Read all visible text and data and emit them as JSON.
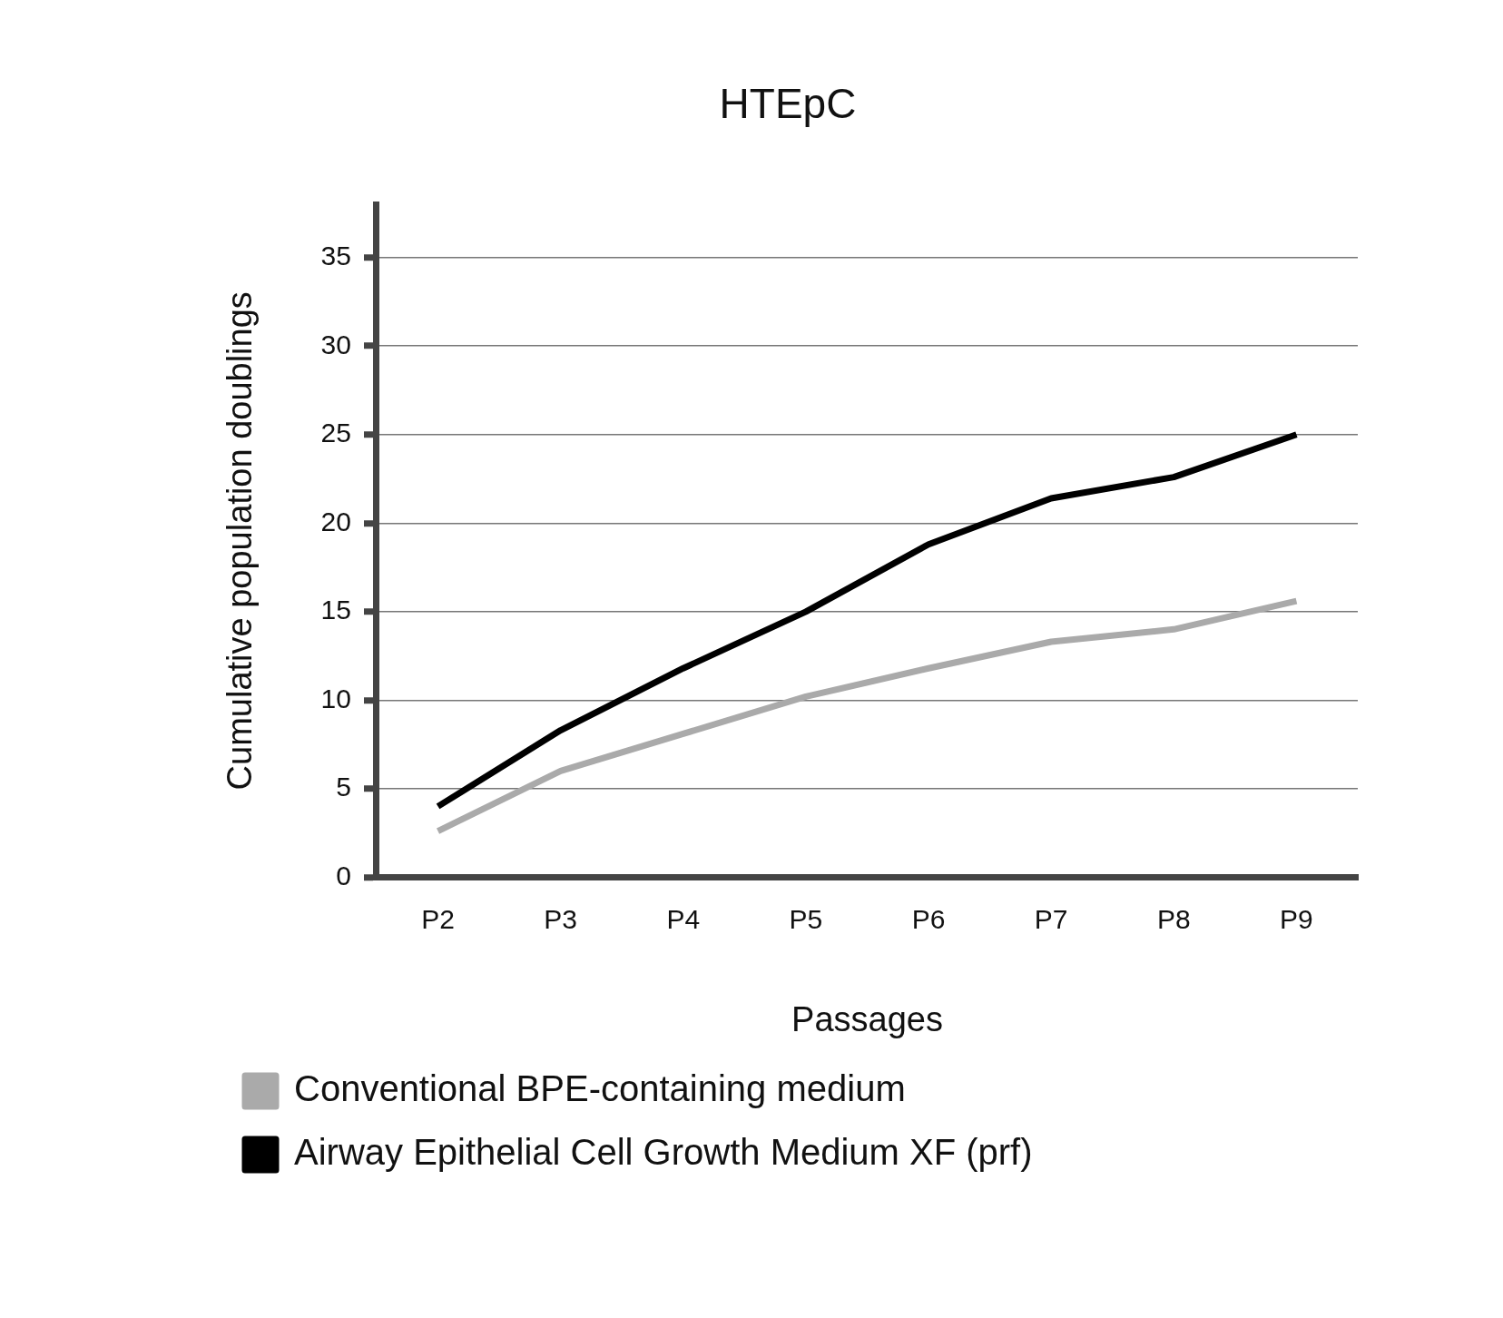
{
  "chart_data": {
    "type": "line",
    "title": "HTEpC",
    "xlabel": "Passages",
    "ylabel": "Cumulative population doublings",
    "categories": [
      "P2",
      "P3",
      "P4",
      "P5",
      "P6",
      "P7",
      "P8",
      "P9"
    ],
    "series": [
      {
        "name": "Conventional BPE-containing medium",
        "color": "#aaaaaa",
        "values": [
          2.6,
          6,
          8.1,
          10.2,
          11.8,
          13.3,
          14,
          15.6
        ]
      },
      {
        "name": "Airway Epithelial Cell Growth Medium XF (prf)",
        "color": "#000000",
        "values": [
          4,
          8.3,
          11.8,
          15,
          18.8,
          21.4,
          22.6,
          25
        ]
      }
    ],
    "ylim": [
      0,
      38
    ],
    "yticks": [
      0,
      5,
      10,
      15,
      20,
      25,
      30,
      35
    ],
    "grid": "y",
    "legend": "bottom",
    "marker": "none",
    "line_style": "solid"
  }
}
